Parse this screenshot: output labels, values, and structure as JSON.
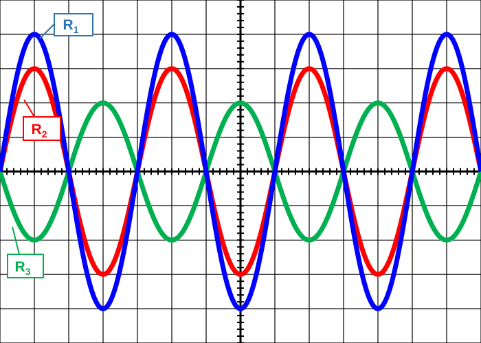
{
  "chart_data": {
    "type": "line",
    "title": "",
    "xlabel": "",
    "ylabel": "",
    "grid": true,
    "xlim": [
      0,
      14
    ],
    "ylim": [
      -5,
      5
    ],
    "series": [
      {
        "name": "R1",
        "color": "#0000ff",
        "amplitude": 4.0,
        "period": 4,
        "phase_deg": 0
      },
      {
        "name": "R2",
        "color": "#ff0000",
        "amplitude": 3.0,
        "period": 4,
        "phase_deg": 0
      },
      {
        "name": "R3",
        "color": "#00b050",
        "amplitude": 2.0,
        "period": 4,
        "phase_deg": 180
      }
    ],
    "annotations": [
      {
        "series": "R1",
        "label_main": "R",
        "label_sub": "1",
        "color": "#2e75b6"
      },
      {
        "series": "R2",
        "label_main": "R",
        "label_sub": "2",
        "color": "#ff0000"
      },
      {
        "series": "R3",
        "label_main": "R",
        "label_sub": "3",
        "color": "#00b050"
      }
    ]
  }
}
